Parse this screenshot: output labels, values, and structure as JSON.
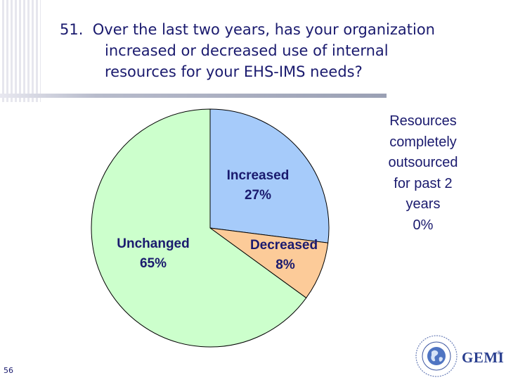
{
  "slide": {
    "title_number": "51.",
    "title_lines": [
      "Over the last two years, has your organization",
      "increased or decreased use of internal",
      "resources for your EHS-IMS needs?"
    ],
    "page_number": "56",
    "side_note": "Resources\ncompletely\noutsourced\nfor past 2\nyears\n0%",
    "logo_text": "GEMI",
    "logo_reg": "®"
  },
  "chart_data": {
    "type": "pie",
    "slices": [
      {
        "label": "Increased",
        "value": 27,
        "value_label": "27%",
        "color": "#a6cbfa"
      },
      {
        "label": "Decreased",
        "value": 8,
        "value_label": "8%",
        "color": "#fccb99"
      },
      {
        "label": "Unchanged",
        "value": 65,
        "value_label": "65%",
        "color": "#ccffcc"
      },
      {
        "label": "Resources completely outsourced for past 2 years",
        "value": 0,
        "value_label": "0%",
        "color": "#ffffff"
      }
    ],
    "start_angle": "12 o'clock",
    "direction": "clockwise",
    "outline_color": "#000000"
  }
}
